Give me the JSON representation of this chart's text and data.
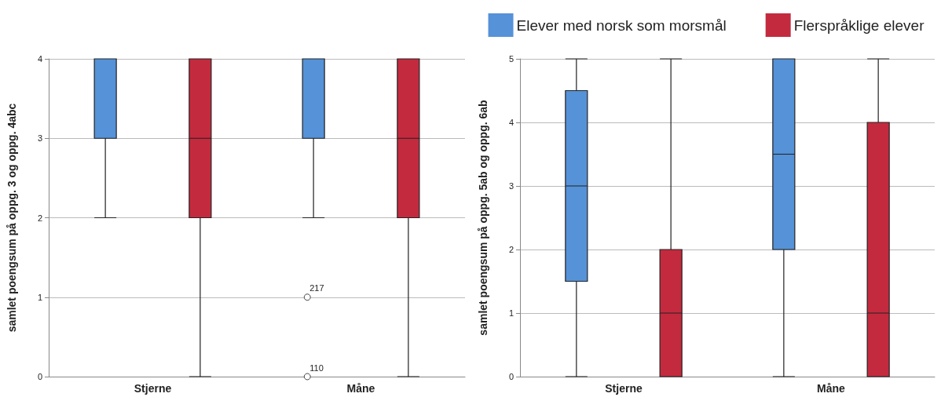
{
  "chart_data": [
    {
      "type": "box",
      "ylabel": "samlet poengsum på oppg. 3 og oppg. 4abc",
      "categories": [
        "Stjerne",
        "Måne"
      ],
      "ylim": [
        0,
        4
      ],
      "yticks": [
        0,
        1,
        2,
        3,
        4
      ],
      "grid": "y",
      "legend": false,
      "series": [
        {
          "color": "#5592d8",
          "boxes": [
            {
              "low": 2,
              "q1": 3,
              "median": 3,
              "q3": 4,
              "high": 4
            },
            {
              "low": 2,
              "q1": 3,
              "median": 3,
              "q3": 4,
              "high": 4,
              "outliers": [
                1,
                0
              ]
            }
          ]
        },
        {
          "color": "#c42a3e",
          "boxes": [
            {
              "low": 0,
              "q1": 2,
              "median": 3,
              "q3": 4,
              "high": 4
            },
            {
              "low": 0,
              "q1": 2,
              "median": 3,
              "q3": 4,
              "high": 4
            }
          ]
        }
      ],
      "annotations": [
        "217",
        "110"
      ]
    },
    {
      "type": "box",
      "ylabel": "samlet poengsum på oppg. 5ab og oppg. 6ab",
      "categories": [
        "Stjerne",
        "Måne"
      ],
      "ylim": [
        0,
        5
      ],
      "yticks": [
        0,
        1,
        2,
        3,
        4,
        5
      ],
      "grid": "y",
      "legend": "top",
      "series": [
        {
          "name": "Elever med norsk som morsmål",
          "color": "#5592d8",
          "boxes": [
            {
              "low": 0,
              "q1": 1.5,
              "median": 3,
              "q3": 4.5,
              "high": 5
            },
            {
              "low": 0,
              "q1": 2,
              "median": 3.5,
              "q3": 5,
              "high": 5
            }
          ]
        },
        {
          "name": "Flerspråklige elever",
          "color": "#c42a3e",
          "boxes": [
            {
              "low": 0,
              "q1": 0,
              "median": 1,
              "q3": 2,
              "high": 5
            },
            {
              "low": 0,
              "q1": 0,
              "median": 1,
              "q3": 4,
              "high": 5
            }
          ]
        }
      ]
    }
  ]
}
